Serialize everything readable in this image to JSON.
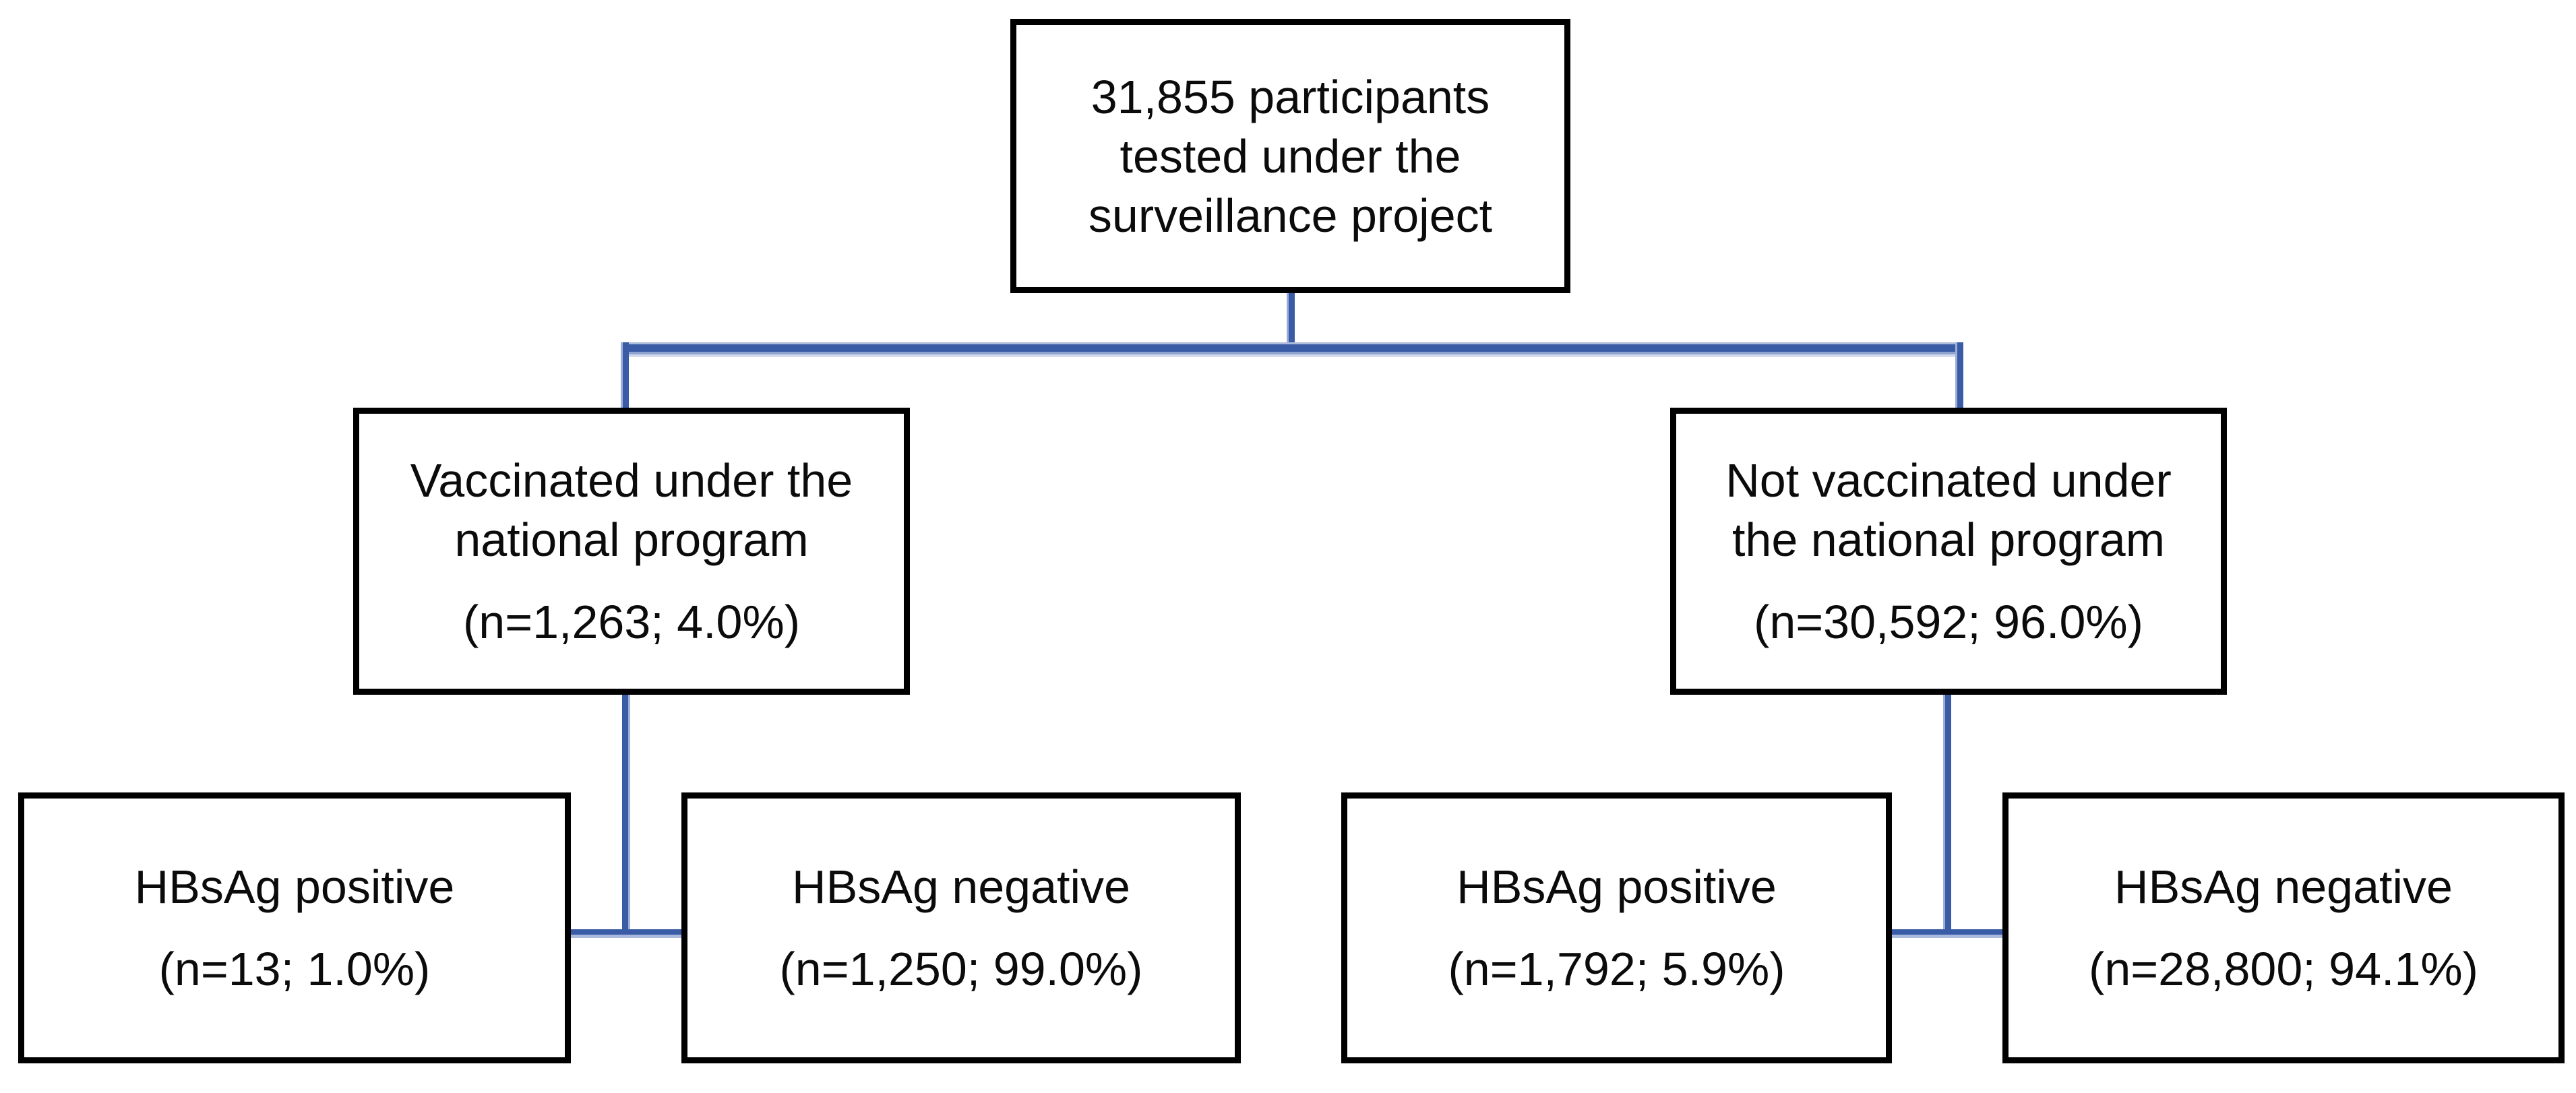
{
  "figure": {
    "type": "flowchart",
    "background_color": "#ffffff",
    "box_border_color": "#000000",
    "connector_color_dark": "#3a5ba6",
    "connector_color_light": "#9dafd6",
    "root": {
      "lines": [
        "31,855 participants",
        "tested under the",
        "surveillance project"
      ]
    },
    "branches": [
      {
        "label_lines": [
          "Vaccinated under the",
          "national program"
        ],
        "stat": "(n=1,263; 4.0%)"
      },
      {
        "label_lines": [
          "Not vaccinated under",
          "the national program"
        ],
        "stat": "(n=30,592; 96.0%)"
      }
    ],
    "leaves": [
      {
        "label": "HBsAg positive",
        "stat": "(n=13; 1.0%)"
      },
      {
        "label": "HBsAg negative",
        "stat": "(n=1,250; 99.0%)"
      },
      {
        "label": "HBsAg positive",
        "stat": "(n=1,792; 5.9%)"
      },
      {
        "label": "HBsAg negative",
        "stat": "(n=28,800; 94.1%)"
      }
    ]
  }
}
